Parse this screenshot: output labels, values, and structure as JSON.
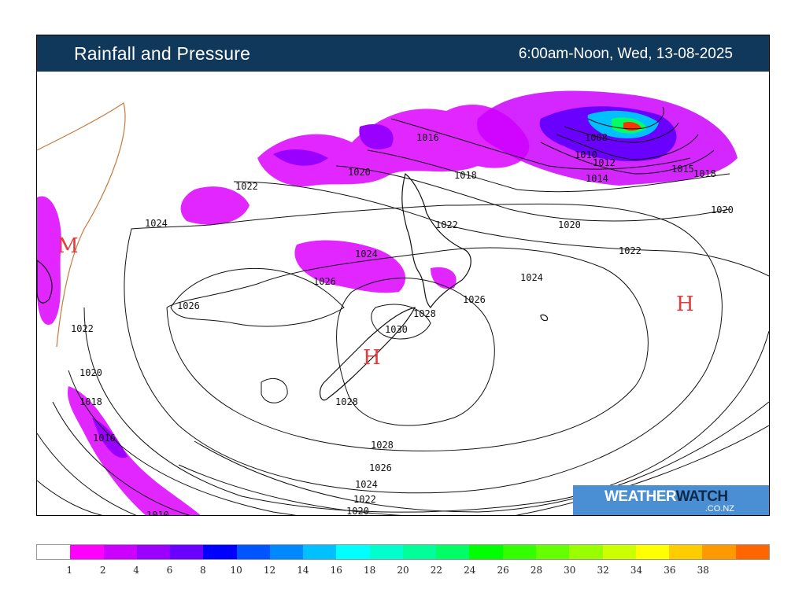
{
  "header": {
    "title": "Rainfall and Pressure",
    "period": "6:00am-Noon, Wed, 13-08-2025"
  },
  "logo": {
    "brand_part1": "WEATHER",
    "brand_part2": "WATCH",
    "domain": ".CO.NZ",
    "background": "#4a8fd4"
  },
  "map": {
    "pressure_centres": [
      {
        "label": "H",
        "name": "high-east"
      },
      {
        "label": "H",
        "name": "high-south-island"
      },
      {
        "label": "M",
        "name": "marker-australia"
      }
    ],
    "isobar_labels": [
      "1008",
      "1010",
      "1012",
      "1014",
      "1015",
      "1016",
      "1018",
      "1020",
      "1022",
      "1024",
      "1026",
      "1028",
      "1030"
    ]
  },
  "legend": {
    "colors": [
      "#ffffff",
      "#ff00ff",
      "#cc00ff",
      "#9a00ff",
      "#6a00ff",
      "#0000ff",
      "#0055ff",
      "#0088ff",
      "#00c0ff",
      "#00ffff",
      "#00ffcc",
      "#00ff99",
      "#00ff66",
      "#00ff00",
      "#33ff00",
      "#66ff00",
      "#99ff00",
      "#ccff00",
      "#ffff00",
      "#ffcc00",
      "#ff9900",
      "#ff6600"
    ],
    "labels": [
      "1",
      "2",
      "4",
      "6",
      "8",
      "10",
      "12",
      "14",
      "16",
      "18",
      "20",
      "22",
      "24",
      "26",
      "28",
      "30",
      "32",
      "34",
      "36",
      "38"
    ]
  }
}
